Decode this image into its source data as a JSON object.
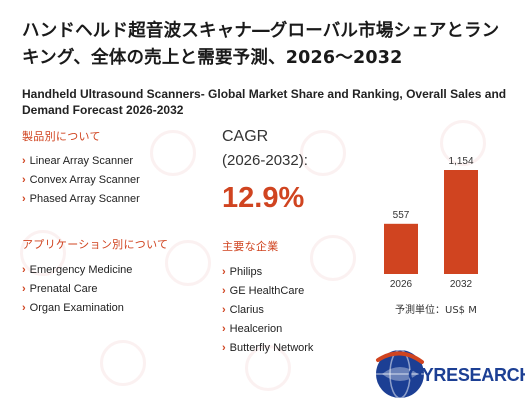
{
  "header": {
    "title_jp": "ハンドヘルド超音波スキャナ―グローバル市場シェアとランキング、全体の売上と需要予測、2026～2032",
    "title_en": "Handheld Ultrasound Scanners- Global Market Share and Ranking, Overall Sales and Demand Forecast 2026-2032"
  },
  "product_section": {
    "heading": "製品別について",
    "items": [
      "Linear Array Scanner",
      "Convex Array Scanner",
      "Phased Array Scanner"
    ]
  },
  "application_section": {
    "heading": "アプリケーション別について",
    "items": [
      "Emergency Medicine",
      "Prenatal Care",
      "Organ Examination"
    ]
  },
  "cagr": {
    "label": "CAGR",
    "period": "(2026-2032):",
    "value": "12.9%"
  },
  "companies_section": {
    "heading": "主要な企業",
    "items": [
      "Philips",
      "GE HealthCare",
      "Clarius",
      "Healcerion",
      "Butterfly Network"
    ]
  },
  "chart_data": {
    "type": "bar",
    "categories": [
      "2026",
      "2032"
    ],
    "values": [
      557,
      1154
    ],
    "data_labels": [
      "557",
      "1,154"
    ],
    "bar_color": "#d04420",
    "ylim": [
      0,
      1154
    ],
    "grid": false
  },
  "unit_label": "予測単位：US$ M",
  "logo": {
    "text_q": "QY",
    "text_rest": "RESEARCH"
  },
  "colors": {
    "accent": "#d04420",
    "brand_blue": "#1c3f94"
  }
}
